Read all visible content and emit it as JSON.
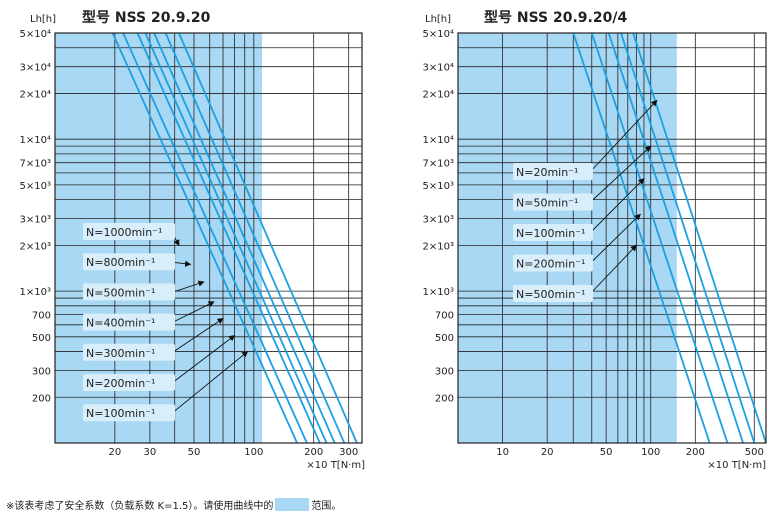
{
  "colors": {
    "range_fill": "#a8d8f3",
    "curve": "#1da0e2",
    "grid": "#222222",
    "text": "#222222",
    "label_bg": "#d8eefa"
  },
  "footnote": {
    "before": "※该表考虑了安全系数（负载系数 K=1.5）。请使用曲线中的",
    "after": "范围。"
  },
  "chart_data": [
    {
      "type": "line",
      "title": "型号 NSS 20.9.20",
      "ylabel": "Lh[h]",
      "xlabel": "×10 T[N·m]",
      "xscale": "log",
      "yscale": "log",
      "xlim": [
        10,
        350
      ],
      "ylim": [
        100,
        50000
      ],
      "shaded_range": {
        "x_max": 110
      },
      "x_tick_labels": [
        {
          "label": "20",
          "value": 20
        },
        {
          "label": "30",
          "value": 30
        },
        {
          "label": "50",
          "value": 50
        },
        {
          "label": "100",
          "value": 100
        },
        {
          "label": "200",
          "value": 200
        },
        {
          "label": "300",
          "value": 300
        }
      ],
      "y_tick_labels": [
        {
          "label": "5×10⁴",
          "value": 50000
        },
        {
          "label": "3×10⁴",
          "value": 30000
        },
        {
          "label": "2×10⁴",
          "value": 20000
        },
        {
          "label": "1×10⁴",
          "value": 10000
        },
        {
          "label": "7×10³",
          "value": 7000
        },
        {
          "label": "5×10³",
          "value": 5000
        },
        {
          "label": "3×10³",
          "value": 3000
        },
        {
          "label": "2×10³",
          "value": 2000
        },
        {
          "label": "1×10³",
          "value": 1000
        },
        {
          "label": "700",
          "value": 700
        },
        {
          "label": "500",
          "value": 500
        },
        {
          "label": "300",
          "value": 300
        },
        {
          "label": "200",
          "value": 200
        }
      ],
      "series": [
        {
          "name": "N=1000min⁻¹",
          "points": [
            [
              19.5,
              50000
            ],
            [
              165,
              100
            ]
          ]
        },
        {
          "name": "N=800min⁻¹",
          "points": [
            [
              22,
              50000
            ],
            [
              185,
              100
            ]
          ]
        },
        {
          "name": "N=500min⁻¹",
          "points": [
            [
              26,
              50000
            ],
            [
              215,
              100
            ]
          ]
        },
        {
          "name": "N=400min⁻¹",
          "points": [
            [
              28.5,
              50000
            ],
            [
              232,
              100
            ]
          ]
        },
        {
          "name": "N=300min⁻¹",
          "points": [
            [
              31.5,
              50000
            ],
            [
              255,
              100
            ]
          ]
        },
        {
          "name": "N=200min⁻¹",
          "points": [
            [
              36,
              50000
            ],
            [
              285,
              100
            ]
          ]
        },
        {
          "name": "N=100min⁻¹",
          "points": [
            [
              42,
              50000
            ],
            [
              330,
              100
            ]
          ]
        }
      ],
      "annotation_targets": [
        [
          42,
          2000
        ],
        [
          48,
          1500
        ],
        [
          56,
          1150
        ],
        [
          63,
          850
        ],
        [
          70,
          660
        ],
        [
          80,
          510
        ],
        [
          93,
          400
        ]
      ]
    },
    {
      "type": "line",
      "title": "型号 NSS 20.9.20/4",
      "ylabel": "Lh[h]",
      "xlabel": "×10 T[N·m]",
      "xscale": "log",
      "yscale": "log",
      "xlim": [
        5,
        600
      ],
      "ylim": [
        100,
        50000
      ],
      "shaded_range": {
        "x_max": 150
      },
      "x_tick_labels": [
        {
          "label": "10",
          "value": 10
        },
        {
          "label": "20",
          "value": 20
        },
        {
          "label": "50",
          "value": 50
        },
        {
          "label": "100",
          "value": 100
        },
        {
          "label": "200",
          "value": 200
        },
        {
          "label": "500",
          "value": 500
        }
      ],
      "y_tick_labels": [
        {
          "label": "5×10⁴",
          "value": 50000
        },
        {
          "label": "3×10⁴",
          "value": 30000
        },
        {
          "label": "2×10⁴",
          "value": 20000
        },
        {
          "label": "1×10⁴",
          "value": 10000
        },
        {
          "label": "7×10³",
          "value": 7000
        },
        {
          "label": "5×10³",
          "value": 5000
        },
        {
          "label": "3×10³",
          "value": 3000
        },
        {
          "label": "2×10³",
          "value": 2000
        },
        {
          "label": "1×10³",
          "value": 1000
        },
        {
          "label": "700",
          "value": 700
        },
        {
          "label": "500",
          "value": 500
        },
        {
          "label": "300",
          "value": 300
        },
        {
          "label": "200",
          "value": 200
        }
      ],
      "series": [
        {
          "name": "N=20min⁻¹",
          "points": [
            [
              30,
              50000
            ],
            [
              250,
              100
            ]
          ]
        },
        {
          "name": "N=50min⁻¹",
          "points": [
            [
              40,
              50000
            ],
            [
              330,
              100
            ]
          ]
        },
        {
          "name": "N=100min⁻¹",
          "points": [
            [
              52,
              50000
            ],
            [
              420,
              100
            ]
          ]
        },
        {
          "name": "N=200min⁻¹",
          "points": [
            [
              63,
              50000
            ],
            [
              500,
              100
            ]
          ]
        },
        {
          "name": "N=500min⁻¹",
          "points": [
            [
              76,
              50000
            ],
            [
              600,
              100
            ]
          ]
        }
      ],
      "annotation_targets": [
        [
          110,
          18000
        ],
        [
          100,
          9000
        ],
        [
          90,
          5500
        ],
        [
          85,
          3200
        ],
        [
          80,
          2000
        ]
      ]
    }
  ]
}
